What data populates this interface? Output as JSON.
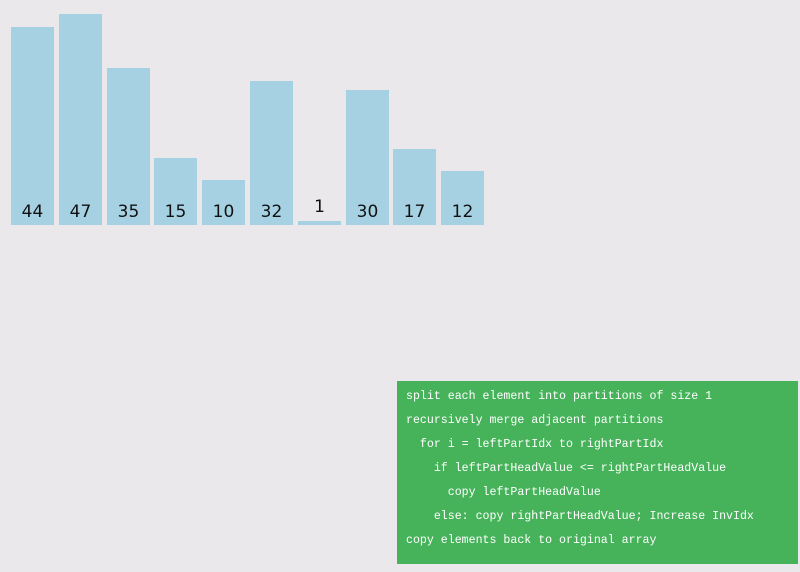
{
  "array": {
    "values": [
      44,
      47,
      35,
      15,
      10,
      32,
      1,
      30,
      17,
      12
    ],
    "labels": [
      "44",
      "47",
      "35",
      "15",
      "10",
      "32",
      "1",
      "30",
      "17",
      "12"
    ],
    "bar_color": "#a6d1e3",
    "background_color": "#ebe8eb"
  },
  "pseudocode": {
    "background_color": "#46b35a",
    "lines": [
      "split each element into partitions of size 1",
      "recursively merge adjacent partitions",
      "  for i = leftPartIdx to rightPartIdx",
      "    if leftPartHeadValue <= rightPartHeadValue",
      "      copy leftPartHeadValue",
      "    else: copy rightPartHeadValue; Increase InvIdx",
      "copy elements back to original array"
    ]
  }
}
